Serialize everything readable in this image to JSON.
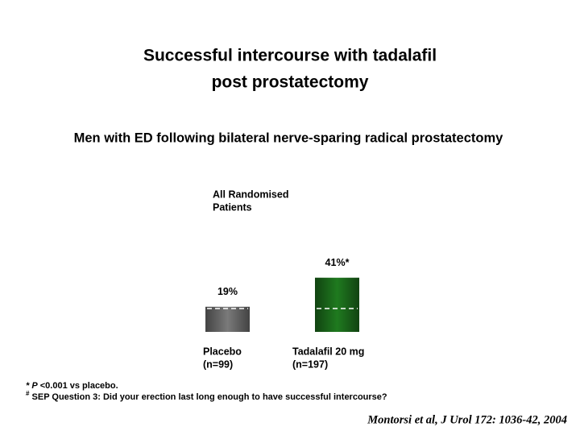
{
  "chart_data": {
    "type": "bar",
    "title": [
      "Successful intercourse with tadalafil",
      "post prostatectomy"
    ],
    "subtitle": "Men with ED following bilateral nerve-sparing radical prostatectomy",
    "panel_label": [
      "All Randomised",
      "Patients"
    ],
    "categories": [
      "Placebo",
      "Tadalafil 20 mg"
    ],
    "category_sublabels": [
      "(n=99)",
      "(n=197)"
    ],
    "values": [
      19,
      41
    ],
    "value_labels": [
      "19%",
      "41%*"
    ],
    "colors": [
      "#7a7a7a",
      "#1f7a1f"
    ],
    "ylim": [
      0,
      50
    ],
    "footnotes": [
      {
        "marker": "* P",
        "text": "<0.001 vs placebo."
      },
      {
        "marker": "#",
        "text": "SEP Question 3: Did your erection last long enough to have successful intercourse?"
      }
    ],
    "citation": "Montorsi et al, J Urol 172: 1036-42, 2004"
  }
}
